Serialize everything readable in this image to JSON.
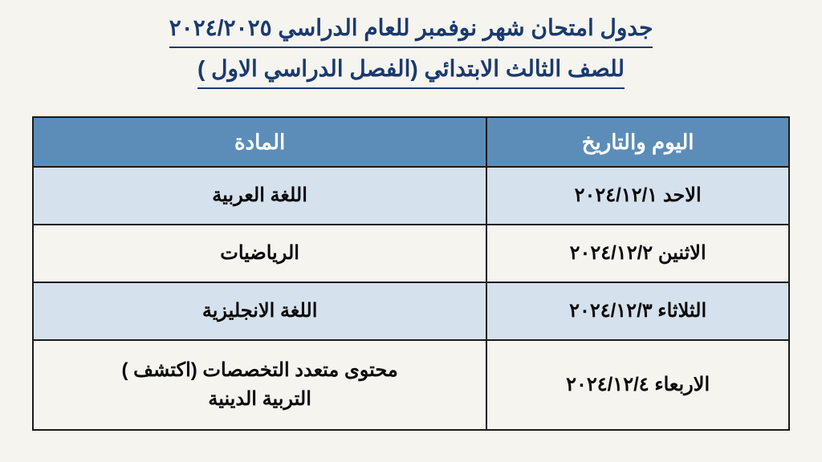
{
  "title": {
    "line1": "جدول امتحان شهر نوفمبر للعام الدراسي ٢٠٢٤/٢٠٢٥",
    "line2": "للصف الثالث الابتدائي (الفصل الدراسي الاول )"
  },
  "table": {
    "headers": {
      "date": "اليوم والتاريخ",
      "subject": "المادة"
    },
    "rows": [
      {
        "date": "الاحد ٢٠٢٤/١٢/١",
        "subject": "اللغة العربية",
        "alt": true
      },
      {
        "date": "الاثنين ٢٠٢٤/١٢/٢",
        "subject": "الرياضيات",
        "alt": false
      },
      {
        "date": "الثلاثاء ٢٠٢٤/١٢/٣",
        "subject": "اللغة الانجليزية",
        "alt": true
      },
      {
        "date": "الاربعاء ٢٠٢٤/١٢/٤",
        "subject": "محتوى متعدد التخصصات (اكتشف )\nالتربية الدينية",
        "alt": false,
        "tall": true
      }
    ]
  },
  "colors": {
    "title_text": "#1a3a6e",
    "header_bg": "#5b8db8",
    "header_text": "#ffffff",
    "row_alt_bg": "#d5e1ec",
    "border": "#1a1a1a",
    "page_bg": "#f5f4ef"
  }
}
